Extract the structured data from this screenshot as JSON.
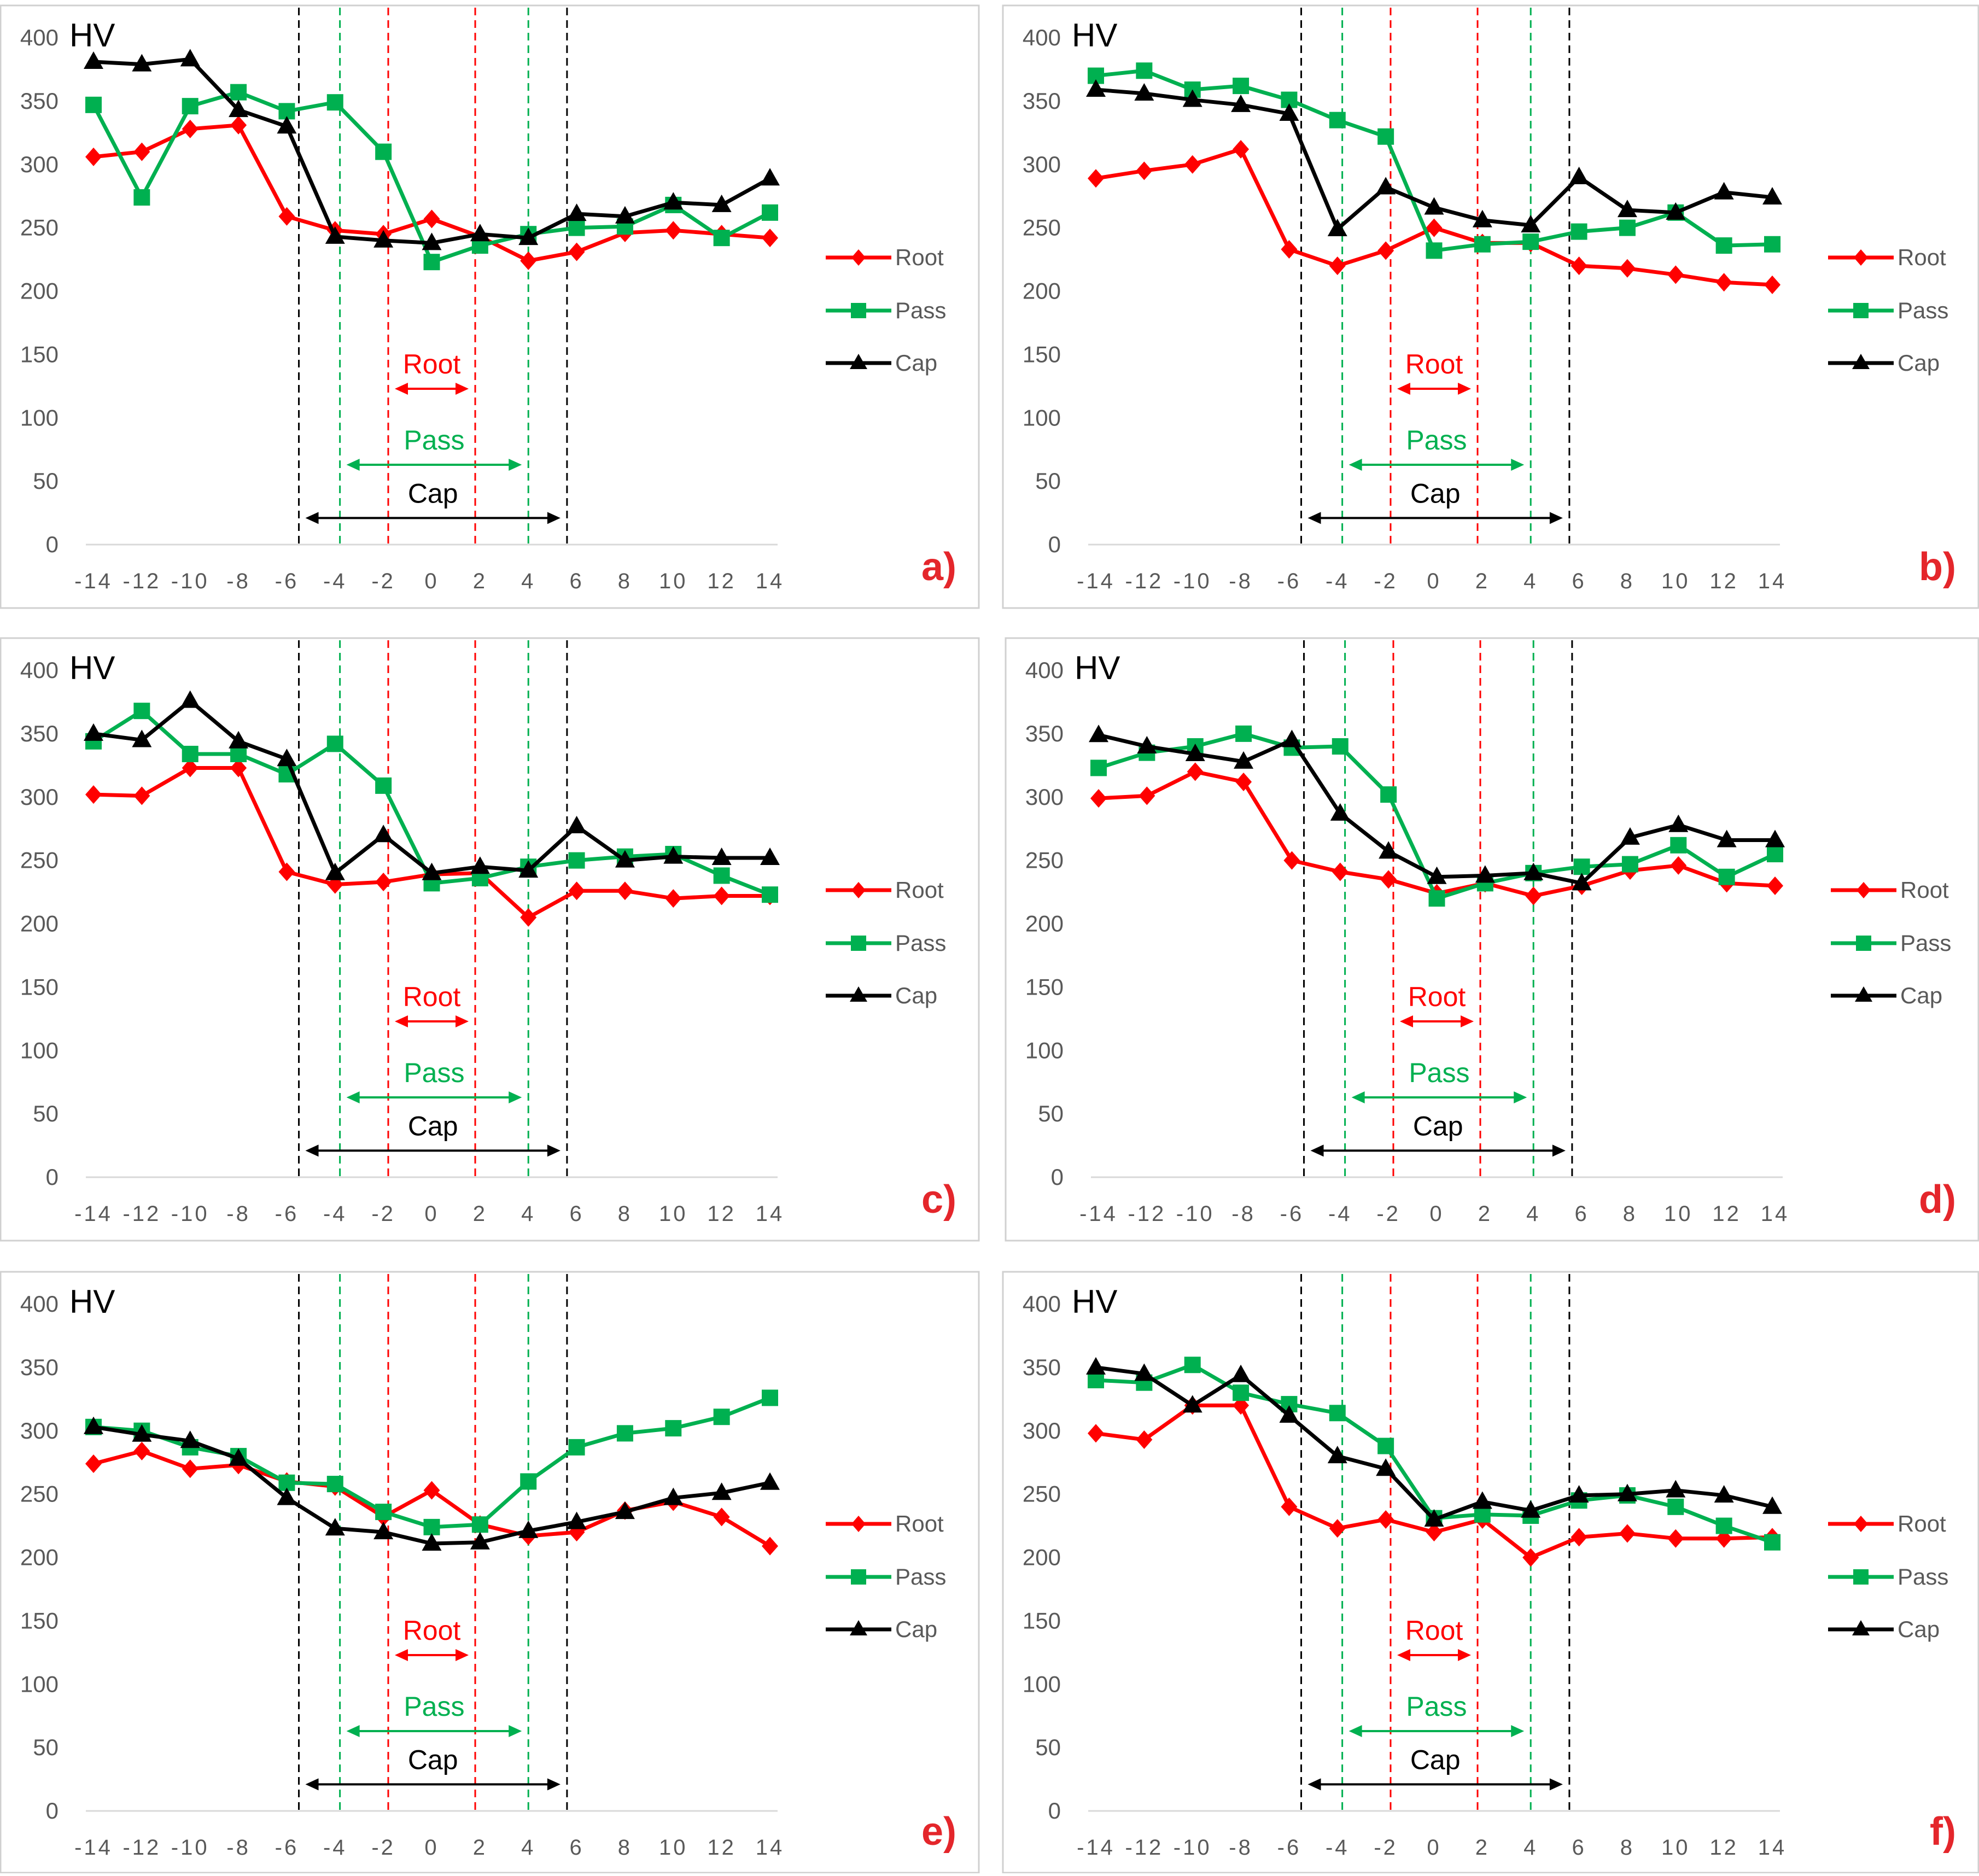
{
  "colors": {
    "root": "#ff0000",
    "pass": "#00b050",
    "cap": "#000000",
    "frame": "#d0d0d0",
    "axis": "#d9d9d9",
    "tick_text": "#595959",
    "panel_label": "#e4262b"
  },
  "chart_data": [
    {
      "type": "line",
      "panel_label": "a)",
      "ylabel": "HV",
      "xlabel": "",
      "ylim": [
        0,
        400
      ],
      "y_ticks": [
        "0",
        "50",
        "100",
        "150",
        "200",
        "250",
        "300",
        "350",
        "400"
      ],
      "x": [
        -14,
        -12,
        -10,
        -8,
        -6,
        -4,
        -2,
        0,
        2,
        4,
        6,
        8,
        10,
        12,
        14
      ],
      "x_tick_labels": [
        "-14",
        "-12",
        "-10",
        "-8",
        "-6",
        "-4",
        "-2",
        "0",
        "2",
        "4",
        "6",
        "8",
        "10",
        "12",
        "14"
      ],
      "series": [
        {
          "name": "Root",
          "marker": "diamond",
          "values": [
            306,
            310,
            328,
            331,
            259,
            248,
            245,
            257,
            243,
            224,
            231,
            246,
            248,
            245,
            242
          ]
        },
        {
          "name": "Pass",
          "marker": "square",
          "values": [
            347,
            274,
            346,
            357,
            342,
            349,
            310,
            223,
            236,
            245,
            250,
            251,
            268,
            242,
            262
          ]
        },
        {
          "name": "Cap",
          "marker": "triangle",
          "values": [
            381,
            379,
            383,
            343,
            330,
            243,
            240,
            238,
            245,
            242,
            261,
            259,
            270,
            268,
            289
          ]
        }
      ],
      "zones": [
        {
          "name": "Root",
          "from": -1.8,
          "to": 1.8,
          "arrow_y": 123
        },
        {
          "name": "Pass",
          "from": -3.8,
          "to": 4.0,
          "arrow_y": 63
        },
        {
          "name": "Cap",
          "from": -5.5,
          "to": 5.6,
          "arrow_y": 21
        }
      ]
    },
    {
      "type": "line",
      "panel_label": "b)",
      "ylabel": "HV",
      "xlabel": "",
      "ylim": [
        0,
        400
      ],
      "y_ticks": [
        "0",
        "50",
        "100",
        "150",
        "200",
        "250",
        "300",
        "350",
        "400"
      ],
      "x": [
        -14,
        -12,
        -10,
        -8,
        -6,
        -4,
        -2,
        0,
        2,
        4,
        6,
        8,
        10,
        12,
        14
      ],
      "x_tick_labels": [
        "-14",
        "-12",
        "-10",
        "-8",
        "-6",
        "-4",
        "-2",
        "0",
        "2",
        "4",
        "6",
        "8",
        "10",
        "12",
        "14"
      ],
      "series": [
        {
          "name": "Root",
          "marker": "diamond",
          "values": [
            289,
            295,
            300,
            312,
            233,
            220,
            232,
            250,
            238,
            238,
            220,
            218,
            213,
            207,
            205
          ]
        },
        {
          "name": "Pass",
          "marker": "square",
          "values": [
            370,
            374,
            359,
            362,
            351,
            335,
            322,
            232,
            237,
            239,
            247,
            250,
            262,
            236,
            237
          ]
        },
        {
          "name": "Cap",
          "marker": "triangle",
          "values": [
            359,
            356,
            351,
            347,
            340,
            249,
            282,
            266,
            256,
            252,
            290,
            264,
            262,
            278,
            274
          ]
        }
      ],
      "zones": [
        {
          "name": "Root",
          "from": -1.8,
          "to": 1.8,
          "arrow_y": 123
        },
        {
          "name": "Pass",
          "from": -3.8,
          "to": 4.0,
          "arrow_y": 63
        },
        {
          "name": "Cap",
          "from": -5.5,
          "to": 5.6,
          "arrow_y": 21
        }
      ]
    },
    {
      "type": "line",
      "panel_label": "c)",
      "ylabel": "HV",
      "xlabel": "",
      "ylim": [
        0,
        400
      ],
      "y_ticks": [
        "0",
        "50",
        "100",
        "150",
        "200",
        "250",
        "300",
        "350",
        "400"
      ],
      "x": [
        -14,
        -12,
        -10,
        -8,
        -6,
        -4,
        -2,
        0,
        2,
        4,
        6,
        8,
        10,
        12,
        14
      ],
      "x_tick_labels": [
        "-14",
        "-12",
        "-10",
        "-8",
        "-6",
        "-4",
        "-2",
        "0",
        "2",
        "4",
        "6",
        "8",
        "10",
        "12",
        "14"
      ],
      "series": [
        {
          "name": "Root",
          "marker": "diamond",
          "values": [
            302,
            301,
            323,
            323,
            241,
            231,
            233,
            239,
            240,
            205,
            226,
            226,
            220,
            222,
            222
          ]
        },
        {
          "name": "Pass",
          "marker": "square",
          "values": [
            344,
            368,
            334,
            334,
            318,
            342,
            309,
            232,
            236,
            245,
            250,
            253,
            255,
            238,
            223
          ]
        },
        {
          "name": "Cap",
          "marker": "triangle",
          "values": [
            350,
            345,
            376,
            344,
            330,
            240,
            270,
            240,
            245,
            242,
            277,
            250,
            253,
            252,
            252
          ]
        }
      ],
      "zones": [
        {
          "name": "Root",
          "from": -1.8,
          "to": 1.8,
          "arrow_y": 123
        },
        {
          "name": "Pass",
          "from": -3.8,
          "to": 4.0,
          "arrow_y": 63
        },
        {
          "name": "Cap",
          "from": -5.5,
          "to": 5.6,
          "arrow_y": 21
        }
      ]
    },
    {
      "type": "line",
      "panel_label": "d)",
      "ylabel": "HV",
      "xlabel": "",
      "ylim": [
        0,
        400
      ],
      "y_ticks": [
        "0",
        "50",
        "100",
        "150",
        "200",
        "250",
        "300",
        "350",
        "400"
      ],
      "x": [
        -14,
        -12,
        -10,
        -8,
        -6,
        -4,
        -2,
        0,
        2,
        4,
        6,
        8,
        10,
        12,
        14
      ],
      "x_tick_labels": [
        "-14",
        "-12",
        "-10",
        "-8",
        "-6",
        "-4",
        "-2",
        "0",
        "2",
        "4",
        "6",
        "8",
        "10",
        "12",
        "14"
      ],
      "series": [
        {
          "name": "Root",
          "marker": "diamond",
          "values": [
            299,
            301,
            320,
            312,
            250,
            241,
            235,
            224,
            232,
            222,
            230,
            242,
            246,
            232,
            230
          ]
        },
        {
          "name": "Pass",
          "marker": "square",
          "values": [
            323,
            335,
            340,
            350,
            339,
            340,
            302,
            220,
            232,
            240,
            245,
            247,
            262,
            237,
            255
          ]
        },
        {
          "name": "Cap",
          "marker": "triangle",
          "values": [
            349,
            340,
            334,
            328,
            345,
            287,
            257,
            237,
            238,
            240,
            232,
            268,
            278,
            266,
            266
          ]
        }
      ],
      "zones": [
        {
          "name": "Root",
          "from": -1.8,
          "to": 1.8,
          "arrow_y": 123
        },
        {
          "name": "Pass",
          "from": -3.8,
          "to": 4.0,
          "arrow_y": 63
        },
        {
          "name": "Cap",
          "from": -5.5,
          "to": 5.6,
          "arrow_y": 21
        }
      ]
    },
    {
      "type": "line",
      "panel_label": "e)",
      "ylabel": "HV",
      "xlabel": "",
      "ylim": [
        0,
        400
      ],
      "y_ticks": [
        "0",
        "50",
        "100",
        "150",
        "200",
        "250",
        "300",
        "350",
        "400"
      ],
      "x": [
        -14,
        -12,
        -10,
        -8,
        -6,
        -4,
        -2,
        0,
        2,
        4,
        6,
        8,
        10,
        12,
        14
      ],
      "x_tick_labels": [
        "-14",
        "-12",
        "-10",
        "-8",
        "-6",
        "-4",
        "-2",
        "0",
        "2",
        "4",
        "6",
        "8",
        "10",
        "12",
        "14"
      ],
      "series": [
        {
          "name": "Root",
          "marker": "diamond",
          "values": [
            274,
            284,
            270,
            273,
            260,
            256,
            232,
            253,
            226,
            217,
            220,
            237,
            244,
            232,
            209
          ]
        },
        {
          "name": "Pass",
          "marker": "square",
          "values": [
            303,
            300,
            287,
            280,
            259,
            258,
            236,
            224,
            226,
            260,
            287,
            298,
            302,
            311,
            326
          ]
        },
        {
          "name": "Cap",
          "marker": "triangle",
          "values": [
            303,
            297,
            292,
            278,
            247,
            223,
            220,
            211,
            212,
            221,
            228,
            236,
            247,
            251,
            259
          ]
        }
      ],
      "zones": [
        {
          "name": "Root",
          "from": -1.8,
          "to": 1.8,
          "arrow_y": 123
        },
        {
          "name": "Pass",
          "from": -3.8,
          "to": 4.0,
          "arrow_y": 63
        },
        {
          "name": "Cap",
          "from": -5.5,
          "to": 5.6,
          "arrow_y": 21
        }
      ]
    },
    {
      "type": "line",
      "panel_label": "f)",
      "ylabel": "HV",
      "xlabel": "",
      "ylim": [
        0,
        400
      ],
      "y_ticks": [
        "0",
        "50",
        "100",
        "150",
        "200",
        "250",
        "300",
        "350",
        "400"
      ],
      "x": [
        -14,
        -12,
        -10,
        -8,
        -6,
        -4,
        -2,
        0,
        2,
        4,
        6,
        8,
        10,
        12,
        14
      ],
      "x_tick_labels": [
        "-14",
        "-12",
        "-10",
        "-8",
        "-6",
        "-4",
        "-2",
        "0",
        "2",
        "4",
        "6",
        "8",
        "10",
        "12",
        "14"
      ],
      "series": [
        {
          "name": "Root",
          "marker": "diamond",
          "values": [
            298,
            293,
            320,
            320,
            240,
            223,
            230,
            220,
            230,
            200,
            216,
            219,
            215,
            215,
            216
          ]
        },
        {
          "name": "Pass",
          "marker": "square",
          "values": [
            340,
            338,
            352,
            330,
            321,
            314,
            288,
            231,
            234,
            233,
            245,
            249,
            240,
            225,
            212
          ]
        },
        {
          "name": "Cap",
          "marker": "triangle",
          "values": [
            350,
            345,
            320,
            344,
            312,
            280,
            270,
            230,
            244,
            237,
            249,
            250,
            253,
            249,
            240
          ]
        }
      ],
      "zones": [
        {
          "name": "Root",
          "from": -1.8,
          "to": 1.8,
          "arrow_y": 123
        },
        {
          "name": "Pass",
          "from": -3.8,
          "to": 4.0,
          "arrow_y": 63
        },
        {
          "name": "Cap",
          "from": -5.5,
          "to": 5.6,
          "arrow_y": 21
        }
      ]
    }
  ]
}
